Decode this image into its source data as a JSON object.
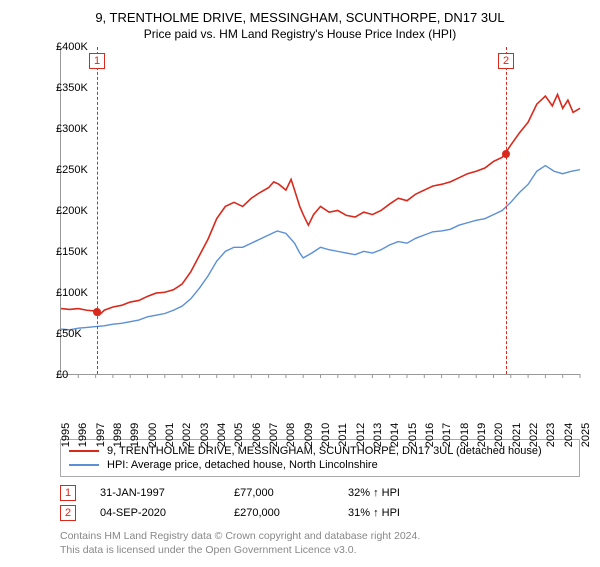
{
  "title": "9, TRENTHOLME DRIVE, MESSINGHAM, SCUNTHORPE, DN17 3UL",
  "subtitle": "Price paid vs. HM Land Registry's House Price Index (HPI)",
  "chart": {
    "type": "line",
    "background_color": "#ffffff",
    "axis_color": "#999999",
    "xlim": [
      1995,
      2025
    ],
    "ylim": [
      0,
      400000
    ],
    "yticks": [
      0,
      50000,
      100000,
      150000,
      200000,
      250000,
      300000,
      350000,
      400000
    ],
    "ytick_labels": [
      "£0",
      "£50K",
      "£100K",
      "£150K",
      "£200K",
      "£250K",
      "£300K",
      "£350K",
      "£400K"
    ],
    "xticks": [
      1995,
      1996,
      1997,
      1998,
      1999,
      2000,
      2001,
      2002,
      2003,
      2004,
      2005,
      2006,
      2007,
      2008,
      2009,
      2010,
      2011,
      2012,
      2013,
      2014,
      2015,
      2016,
      2017,
      2018,
      2019,
      2020,
      2021,
      2022,
      2023,
      2024,
      2025
    ],
    "label_fontsize": 11,
    "series": [
      {
        "name": "9, TRENTHOLME DRIVE, MESSINGHAM, SCUNTHORPE, DN17 3UL (detached house)",
        "color": "#d9291c",
        "line_width": 1.6,
        "points": [
          [
            1995,
            80000
          ],
          [
            1995.5,
            79000
          ],
          [
            1996,
            80000
          ],
          [
            1996.5,
            78000
          ],
          [
            1997,
            77000
          ],
          [
            1997.2,
            72000
          ],
          [
            1997.5,
            78000
          ],
          [
            1998,
            82000
          ],
          [
            1998.5,
            84000
          ],
          [
            1999,
            88000
          ],
          [
            1999.5,
            90000
          ],
          [
            2000,
            95000
          ],
          [
            2000.5,
            99000
          ],
          [
            2001,
            100000
          ],
          [
            2001.5,
            103000
          ],
          [
            2002,
            110000
          ],
          [
            2002.5,
            125000
          ],
          [
            2003,
            145000
          ],
          [
            2003.5,
            165000
          ],
          [
            2004,
            190000
          ],
          [
            2004.5,
            205000
          ],
          [
            2005,
            210000
          ],
          [
            2005.5,
            205000
          ],
          [
            2006,
            215000
          ],
          [
            2006.5,
            222000
          ],
          [
            2007,
            228000
          ],
          [
            2007.3,
            235000
          ],
          [
            2007.6,
            232000
          ],
          [
            2008,
            225000
          ],
          [
            2008.3,
            238000
          ],
          [
            2008.5,
            225000
          ],
          [
            2008.8,
            205000
          ],
          [
            2009,
            195000
          ],
          [
            2009.3,
            182000
          ],
          [
            2009.6,
            195000
          ],
          [
            2010,
            205000
          ],
          [
            2010.5,
            198000
          ],
          [
            2011,
            200000
          ],
          [
            2011.5,
            194000
          ],
          [
            2012,
            192000
          ],
          [
            2012.5,
            198000
          ],
          [
            2013,
            195000
          ],
          [
            2013.5,
            200000
          ],
          [
            2014,
            208000
          ],
          [
            2014.5,
            215000
          ],
          [
            2015,
            212000
          ],
          [
            2015.5,
            220000
          ],
          [
            2016,
            225000
          ],
          [
            2016.5,
            230000
          ],
          [
            2017,
            232000
          ],
          [
            2017.5,
            235000
          ],
          [
            2018,
            240000
          ],
          [
            2018.5,
            245000
          ],
          [
            2019,
            248000
          ],
          [
            2019.5,
            252000
          ],
          [
            2020,
            260000
          ],
          [
            2020.5,
            265000
          ],
          [
            2020.68,
            270000
          ],
          [
            2021,
            280000
          ],
          [
            2021.5,
            295000
          ],
          [
            2022,
            308000
          ],
          [
            2022.5,
            330000
          ],
          [
            2023,
            340000
          ],
          [
            2023.4,
            328000
          ],
          [
            2023.7,
            342000
          ],
          [
            2024,
            325000
          ],
          [
            2024.3,
            335000
          ],
          [
            2024.6,
            320000
          ],
          [
            2025,
            325000
          ]
        ]
      },
      {
        "name": "HPI: Average price, detached house, North Lincolnshire",
        "color": "#5b8fd6",
        "line_width": 1.4,
        "points": [
          [
            1995,
            55000
          ],
          [
            1995.5,
            54000
          ],
          [
            1996,
            56000
          ],
          [
            1996.5,
            57000
          ],
          [
            1997,
            58000
          ],
          [
            1997.5,
            59000
          ],
          [
            1998,
            61000
          ],
          [
            1998.5,
            62000
          ],
          [
            1999,
            64000
          ],
          [
            1999.5,
            66000
          ],
          [
            2000,
            70000
          ],
          [
            2000.5,
            72000
          ],
          [
            2001,
            74000
          ],
          [
            2001.5,
            78000
          ],
          [
            2002,
            83000
          ],
          [
            2002.5,
            92000
          ],
          [
            2003,
            105000
          ],
          [
            2003.5,
            120000
          ],
          [
            2004,
            138000
          ],
          [
            2004.5,
            150000
          ],
          [
            2005,
            155000
          ],
          [
            2005.5,
            155000
          ],
          [
            2006,
            160000
          ],
          [
            2006.5,
            165000
          ],
          [
            2007,
            170000
          ],
          [
            2007.5,
            175000
          ],
          [
            2008,
            172000
          ],
          [
            2008.5,
            160000
          ],
          [
            2008.8,
            148000
          ],
          [
            2009,
            142000
          ],
          [
            2009.5,
            148000
          ],
          [
            2010,
            155000
          ],
          [
            2010.5,
            152000
          ],
          [
            2011,
            150000
          ],
          [
            2011.5,
            148000
          ],
          [
            2012,
            146000
          ],
          [
            2012.5,
            150000
          ],
          [
            2013,
            148000
          ],
          [
            2013.5,
            152000
          ],
          [
            2014,
            158000
          ],
          [
            2014.5,
            162000
          ],
          [
            2015,
            160000
          ],
          [
            2015.5,
            166000
          ],
          [
            2016,
            170000
          ],
          [
            2016.5,
            174000
          ],
          [
            2017,
            175000
          ],
          [
            2017.5,
            177000
          ],
          [
            2018,
            182000
          ],
          [
            2018.5,
            185000
          ],
          [
            2019,
            188000
          ],
          [
            2019.5,
            190000
          ],
          [
            2020,
            195000
          ],
          [
            2020.5,
            200000
          ],
          [
            2021,
            210000
          ],
          [
            2021.5,
            222000
          ],
          [
            2022,
            232000
          ],
          [
            2022.5,
            248000
          ],
          [
            2023,
            255000
          ],
          [
            2023.5,
            248000
          ],
          [
            2024,
            245000
          ],
          [
            2024.5,
            248000
          ],
          [
            2025,
            250000
          ]
        ]
      }
    ],
    "sale_markers": [
      {
        "n": "1",
        "color": "#d9291c",
        "x": 1997.08,
        "y": 77000
      },
      {
        "n": "2",
        "color": "#d9291c",
        "x": 2020.68,
        "y": 270000
      }
    ]
  },
  "legend": {
    "border_color": "#aaaaaa",
    "rows": [
      {
        "color": "#d9291c",
        "label": "9, TRENTHOLME DRIVE, MESSINGHAM, SCUNTHORPE, DN17 3UL (detached house)"
      },
      {
        "color": "#5b8fd6",
        "label": "HPI: Average price, detached house, North Lincolnshire"
      }
    ]
  },
  "sales": [
    {
      "n": "1",
      "marker_color": "#d9291c",
      "date": "31-JAN-1997",
      "price": "£77,000",
      "delta": "32% ↑ HPI"
    },
    {
      "n": "2",
      "marker_color": "#d9291c",
      "date": "04-SEP-2020",
      "price": "£270,000",
      "delta": "31% ↑ HPI"
    }
  ],
  "footer": {
    "line1": "Contains HM Land Registry data © Crown copyright and database right 2024.",
    "line2": "This data is licensed under the Open Government Licence v3.0."
  }
}
